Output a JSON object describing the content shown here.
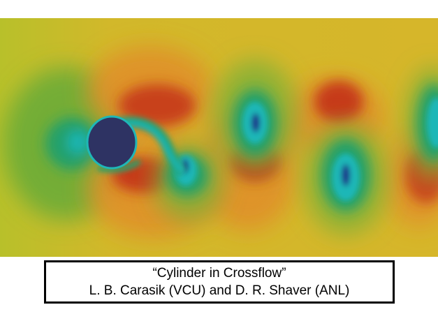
{
  "figure": {
    "colors": {
      "free_stream": "#c9c32a",
      "high": "#c4321a",
      "mid": "#e0a020",
      "low": "#22a06a",
      "very_low": "#1fb7b7",
      "core": "#1a2a8a",
      "cylinder": "#2e3363"
    }
  },
  "caption": {
    "title": "“Cylinder in Crossflow”",
    "credit": "L. B. Carasik (VCU) and D. R. Shaver (ANL)"
  }
}
